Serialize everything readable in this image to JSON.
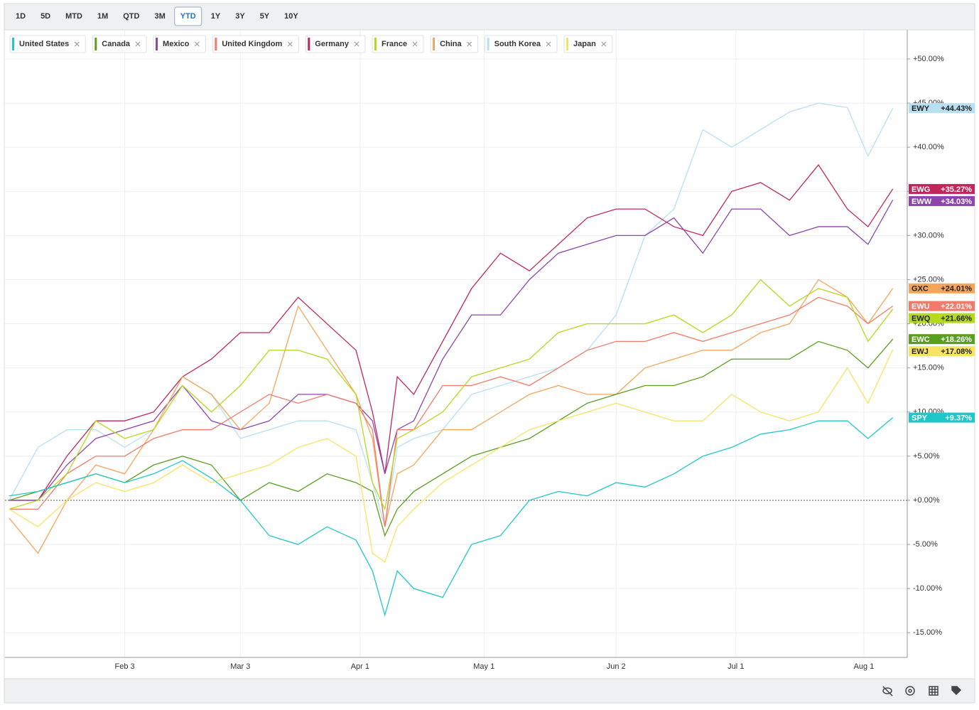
{
  "toolbar": {
    "ranges": [
      "1D",
      "5D",
      "MTD",
      "1M",
      "QTD",
      "3M",
      "YTD",
      "1Y",
      "3Y",
      "5Y",
      "10Y"
    ],
    "selected": "YTD"
  },
  "chart_data": {
    "type": "line",
    "x": [
      6,
      13,
      20,
      27,
      34,
      41,
      48,
      55,
      62,
      69,
      76,
      83,
      90,
      94,
      97,
      100,
      104,
      111,
      118,
      125,
      132,
      139,
      146,
      153,
      160,
      167,
      174,
      181,
      188,
      195,
      202,
      209,
      214,
      220
    ],
    "xlim": [
      5,
      223.5
    ],
    "xticks": [
      {
        "value": 34,
        "label": "Feb 3"
      },
      {
        "value": 62,
        "label": "Mar 3"
      },
      {
        "value": 91,
        "label": "Apr 1"
      },
      {
        "value": 121,
        "label": "May 1"
      },
      {
        "value": 153,
        "label": "Jun 2"
      },
      {
        "value": 182,
        "label": "Jul 1"
      },
      {
        "value": 213,
        "label": "Aug 1"
      }
    ],
    "ylim": [
      -17.8,
      53.3
    ],
    "yticks": [
      {
        "value": -15,
        "label": "-15.00%"
      },
      {
        "value": -10,
        "label": "-10.00%"
      },
      {
        "value": -5,
        "label": "-5.00%"
      },
      {
        "value": 0,
        "label": "+0.00%"
      },
      {
        "value": 5,
        "label": "+5.00%"
      },
      {
        "value": 10,
        "label": "+10.00%"
      },
      {
        "value": 15,
        "label": "+15.00%"
      },
      {
        "value": 20,
        "label": "+20.00%"
      },
      {
        "value": 25,
        "label": "+25.00%"
      },
      {
        "value": 30,
        "label": "+30.00%"
      },
      {
        "value": 35,
        "label": "+35.00%"
      },
      {
        "value": 40,
        "label": "+40.00%"
      },
      {
        "value": 45,
        "label": "+45.00%"
      },
      {
        "value": 50,
        "label": "+50.00%"
      }
    ],
    "grid": true,
    "series": [
      {
        "name": "United States",
        "ticker": "SPY",
        "last_label": "+9.37%",
        "color": "#1ec8c8",
        "values": [
          0.5,
          1,
          2,
          3,
          2,
          3,
          4.5,
          2.5,
          0,
          -4,
          -5,
          -3,
          -4.5,
          -8,
          -13,
          -8,
          -10,
          -11,
          -5,
          -4,
          0,
          1,
          0.5,
          2,
          1.5,
          3,
          5,
          6,
          7.5,
          8,
          9,
          9,
          7,
          9.37
        ]
      },
      {
        "name": "Canada",
        "ticker": "EWC",
        "last_label": "+18.26%",
        "color": "#5a9e1e",
        "values": [
          0,
          1,
          2,
          3,
          2,
          4,
          5,
          4,
          0,
          2,
          1,
          3,
          2,
          1,
          -4,
          -1,
          1,
          3,
          5,
          6,
          7,
          9,
          11,
          12,
          13,
          13,
          14,
          16,
          16,
          16,
          18,
          17,
          15,
          18.26
        ]
      },
      {
        "name": "Mexico",
        "ticker": "EWW",
        "last_label": "+34.03%",
        "color": "#8e44ad",
        "values": [
          0,
          0,
          4,
          7,
          8,
          9,
          13,
          9,
          8,
          9,
          12,
          12,
          11,
          9,
          3,
          8,
          9,
          16,
          21,
          21,
          25,
          28,
          29,
          30,
          30,
          32,
          28,
          33,
          33,
          30,
          31,
          31,
          29,
          34.03
        ]
      },
      {
        "name": "United Kingdom",
        "ticker": "EWU",
        "last_label": "+22.01%",
        "color": "#f07b6b",
        "values": [
          -1,
          -1,
          3,
          5,
          5,
          7,
          8,
          8,
          10,
          12,
          11,
          12,
          11,
          8,
          -3,
          8,
          8,
          13,
          13,
          14,
          13,
          15,
          17,
          18,
          18,
          19,
          18,
          19,
          20,
          21,
          23,
          22,
          20,
          22.01
        ]
      },
      {
        "name": "Germany",
        "ticker": "EWG",
        "last_label": "+35.27%",
        "color": "#c0265a",
        "values": [
          0,
          0,
          5,
          9,
          9,
          10,
          14,
          16,
          19,
          19,
          23,
          20,
          17,
          10,
          3,
          14,
          12,
          18,
          24,
          28,
          26,
          29,
          32,
          33,
          33,
          31,
          30,
          35,
          36,
          34,
          38,
          33,
          31,
          35.27
        ]
      },
      {
        "name": "France",
        "ticker": "EWQ",
        "last_label": "+21.66%",
        "color": "#b5d91c",
        "values": [
          -1,
          0,
          3,
          9,
          7,
          8,
          13,
          10,
          13,
          17,
          17,
          16,
          12,
          2,
          -1,
          7,
          8,
          10,
          14,
          15,
          16,
          19,
          20,
          20,
          20,
          21,
          19,
          21,
          25,
          22,
          24,
          23,
          18,
          21.66
        ]
      },
      {
        "name": "China",
        "ticker": "GXC",
        "last_label": "+24.01%",
        "color": "#f5a55a",
        "values": [
          -2,
          -6,
          0,
          4,
          3,
          8,
          14,
          12,
          8,
          11,
          22,
          17,
          12,
          7,
          -3,
          3,
          4,
          8,
          8,
          10,
          12,
          13,
          12,
          12,
          15,
          16,
          17,
          17,
          19,
          20,
          25,
          23,
          20,
          24.01
        ]
      },
      {
        "name": "South Korea",
        "ticker": "EWY",
        "last_label": "+44.43%",
        "color": "#b8dff2",
        "values": [
          0,
          6,
          8,
          8,
          6,
          8,
          14,
          12,
          7,
          8,
          9,
          9,
          8,
          2,
          -3,
          6,
          7,
          8,
          12,
          13,
          14,
          15,
          17,
          21,
          30,
          33,
          42,
          40,
          42,
          44,
          45,
          44.5,
          39,
          44.43
        ]
      },
      {
        "name": "Japan",
        "ticker": "EWJ",
        "last_label": "+17.08%",
        "color": "#f7e463",
        "values": [
          -1,
          -3,
          0,
          2,
          1,
          2,
          4,
          2,
          3,
          4,
          6,
          7,
          5,
          -6,
          -7,
          -3,
          -1,
          2,
          4,
          6,
          8,
          9,
          10,
          11,
          10,
          9,
          9,
          12,
          10,
          9,
          10,
          15,
          11,
          17.08
        ]
      }
    ]
  }
}
